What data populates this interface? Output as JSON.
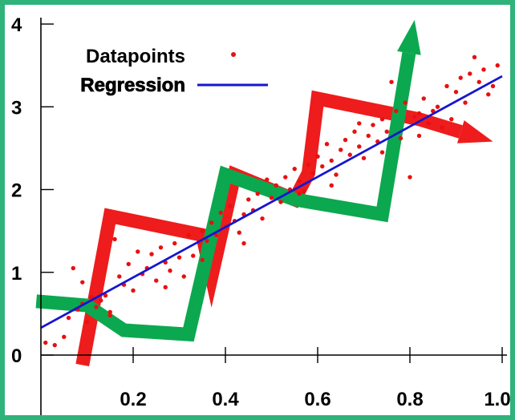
{
  "chart_data": {
    "type": "scatter",
    "title": "",
    "xlabel": "",
    "ylabel": "",
    "xlim": [
      0.0,
      1.0
    ],
    "ylim": [
      0,
      4
    ],
    "x_ticks": [
      0.2,
      0.4,
      0.6,
      0.8,
      1.0
    ],
    "x_tick_labels": [
      "0.2",
      "0.4",
      "0.6",
      "0.8",
      "1.0"
    ],
    "y_ticks": [
      0,
      1,
      2,
      3,
      4
    ],
    "y_tick_labels": [
      "0",
      "1",
      "2",
      "3",
      "4"
    ],
    "grid": false,
    "legend": {
      "placement": "top-left",
      "entries": [
        {
          "label": "Datapoints",
          "marker": "dot",
          "color": "#e81010"
        },
        {
          "label": "Regression",
          "marker": "line",
          "color": "#1515d0"
        }
      ]
    },
    "series": [
      {
        "name": "Datapoints",
        "kind": "scatter",
        "color": "#e81010",
        "points": [
          [
            0.01,
            0.15
          ],
          [
            0.03,
            0.12
          ],
          [
            0.05,
            0.22
          ],
          [
            0.06,
            0.45
          ],
          [
            0.07,
            1.05
          ],
          [
            0.08,
            0.55
          ],
          [
            0.09,
            0.62
          ],
          [
            0.09,
            0.88
          ],
          [
            0.1,
            0.4
          ],
          [
            0.11,
            0.7
          ],
          [
            0.12,
            0.58
          ],
          [
            0.13,
            0.66
          ],
          [
            0.14,
            0.72
          ],
          [
            0.15,
            0.52
          ],
          [
            0.16,
            1.4
          ],
          [
            0.17,
            0.95
          ],
          [
            0.18,
            0.85
          ],
          [
            0.19,
            1.1
          ],
          [
            0.2,
            0.78
          ],
          [
            0.21,
            1.25
          ],
          [
            0.22,
            0.98
          ],
          [
            0.23,
            1.05
          ],
          [
            0.24,
            1.22
          ],
          [
            0.25,
            0.9
          ],
          [
            0.26,
            1.3
          ],
          [
            0.27,
            1.12
          ],
          [
            0.28,
            1.02
          ],
          [
            0.29,
            1.35
          ],
          [
            0.3,
            1.18
          ],
          [
            0.31,
            0.95
          ],
          [
            0.32,
            1.45
          ],
          [
            0.33,
            1.2
          ],
          [
            0.35,
            1.5
          ],
          [
            0.36,
            1.38
          ],
          [
            0.37,
            1.6
          ],
          [
            0.38,
            1.45
          ],
          [
            0.39,
            1.72
          ],
          [
            0.4,
            1.55
          ],
          [
            0.41,
            1.8
          ],
          [
            0.42,
            1.62
          ],
          [
            0.43,
            1.48
          ],
          [
            0.44,
            1.7
          ],
          [
            0.45,
            1.88
          ],
          [
            0.46,
            1.75
          ],
          [
            0.47,
            1.95
          ],
          [
            0.48,
            1.65
          ],
          [
            0.49,
            2.12
          ],
          [
            0.5,
            1.9
          ],
          [
            0.51,
            2.05
          ],
          [
            0.52,
            1.85
          ],
          [
            0.53,
            2.15
          ],
          [
            0.54,
            2.0
          ],
          [
            0.55,
            2.25
          ],
          [
            0.56,
            2.1
          ],
          [
            0.57,
            1.98
          ],
          [
            0.58,
            2.3
          ],
          [
            0.59,
            2.2
          ],
          [
            0.6,
            2.4
          ],
          [
            0.61,
            2.28
          ],
          [
            0.62,
            2.55
          ],
          [
            0.63,
            2.35
          ],
          [
            0.64,
            2.18
          ],
          [
            0.65,
            2.48
          ],
          [
            0.66,
            2.6
          ],
          [
            0.67,
            2.42
          ],
          [
            0.68,
            2.7
          ],
          [
            0.69,
            2.52
          ],
          [
            0.7,
            2.38
          ],
          [
            0.71,
            2.65
          ],
          [
            0.72,
            2.78
          ],
          [
            0.73,
            2.58
          ],
          [
            0.74,
            2.85
          ],
          [
            0.75,
            2.7
          ],
          [
            0.76,
            3.3
          ],
          [
            0.77,
            2.95
          ],
          [
            0.78,
            2.62
          ],
          [
            0.79,
            3.05
          ],
          [
            0.8,
            2.15
          ],
          [
            0.81,
            2.88
          ],
          [
            0.82,
            2.92
          ],
          [
            0.83,
            3.1
          ],
          [
            0.84,
            2.8
          ],
          [
            0.85,
            2.95
          ],
          [
            0.86,
            3.0
          ],
          [
            0.87,
            2.75
          ],
          [
            0.88,
            3.25
          ],
          [
            0.89,
            2.85
          ],
          [
            0.9,
            3.18
          ],
          [
            0.91,
            3.35
          ],
          [
            0.92,
            3.05
          ],
          [
            0.93,
            3.4
          ],
          [
            0.94,
            3.6
          ],
          [
            0.95,
            3.3
          ],
          [
            0.96,
            3.45
          ],
          [
            0.97,
            3.15
          ],
          [
            0.98,
            3.25
          ],
          [
            0.99,
            3.5
          ],
          [
            0.15,
            0.48
          ],
          [
            0.27,
            0.82
          ],
          [
            0.35,
            1.15
          ],
          [
            0.44,
            1.35
          ],
          [
            0.56,
            1.95
          ],
          [
            0.63,
            2.05
          ],
          [
            0.69,
            2.8
          ],
          [
            0.74,
            2.45
          ],
          [
            0.82,
            2.65
          ]
        ]
      },
      {
        "name": "Regression",
        "kind": "line",
        "color": "#1515d0",
        "points": [
          [
            0.0,
            0.33
          ],
          [
            1.0,
            3.37
          ]
        ]
      }
    ],
    "annotations": [
      {
        "kind": "arrow",
        "color": "#ee1c1c",
        "points": [
          [
            0.09,
            -0.12
          ],
          [
            0.15,
            1.68
          ],
          [
            0.35,
            1.45
          ],
          [
            0.37,
            0.95
          ],
          [
            0.42,
            2.18
          ],
          [
            0.55,
            1.88
          ],
          [
            0.58,
            2.2
          ],
          [
            0.6,
            3.1
          ],
          [
            0.82,
            2.85
          ],
          [
            0.98,
            2.58
          ]
        ]
      },
      {
        "kind": "arrow",
        "color": "#0ca84f",
        "points": [
          [
            -0.01,
            0.65
          ],
          [
            0.1,
            0.6
          ],
          [
            0.18,
            0.3
          ],
          [
            0.32,
            0.25
          ],
          [
            0.4,
            2.18
          ],
          [
            0.55,
            1.88
          ],
          [
            0.74,
            1.7
          ],
          [
            0.81,
            4.05
          ]
        ]
      }
    ]
  }
}
